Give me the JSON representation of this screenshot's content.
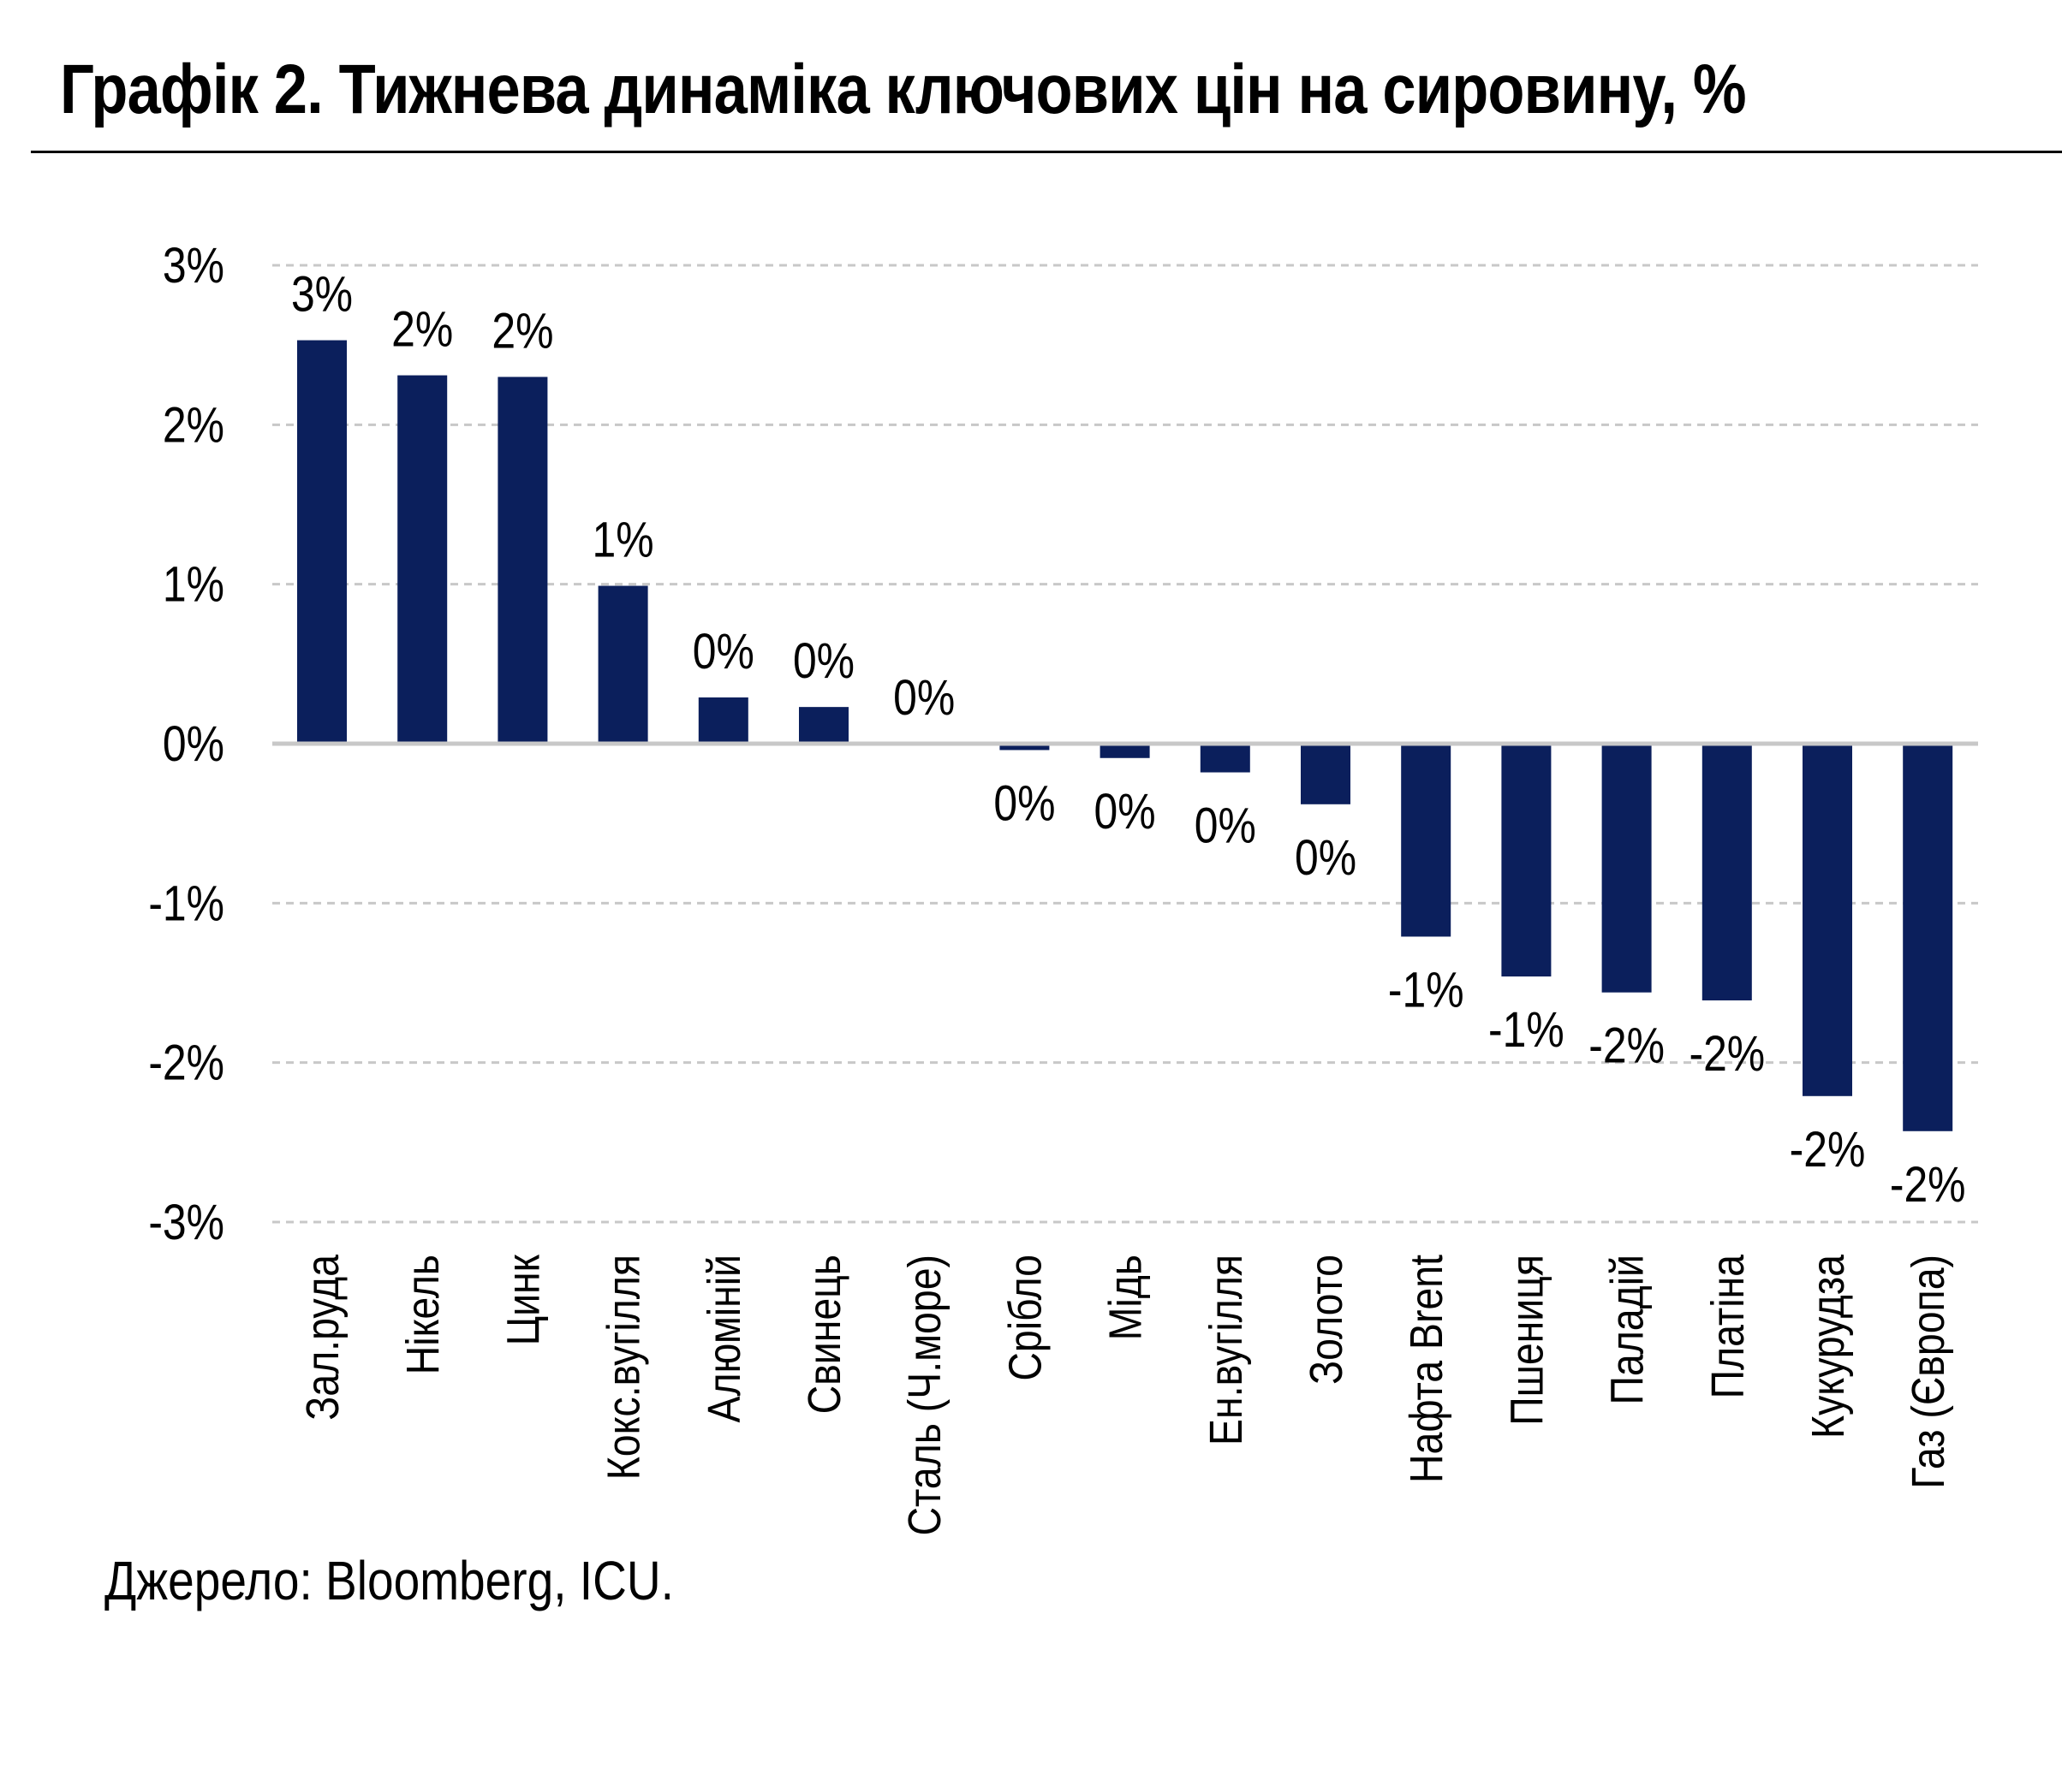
{
  "title": "Графік 2. Тижнева динаміка ключових цін на сировину, %",
  "source": "Джерело: Bloomberg, ICU.",
  "colors": {
    "bar": "#0b1f5c",
    "grid": "#c8c8c8",
    "zero_line": "#c8c8c8"
  },
  "chart_data": {
    "type": "bar",
    "categories": [
      "Зал.руда",
      "Нікель",
      "Цинк",
      "Кокс.вугілля",
      "Алюміній",
      "Свинець",
      "Сталь (Ч.море)",
      "Срібло",
      "Мідь",
      "Ен.вугілля",
      "Золото",
      "Нафта Brent",
      "Пшениця",
      "Паладій",
      "Платіна",
      "Кукурудза",
      "Газ (Європа)"
    ],
    "values": [
      2.53,
      2.31,
      2.3,
      0.99,
      0.29,
      0.23,
      0.0,
      -0.04,
      -0.09,
      -0.18,
      -0.38,
      -1.21,
      -1.46,
      -1.56,
      -1.61,
      -2.21,
      -2.43
    ],
    "data_labels": [
      "3%",
      "2%",
      "2%",
      "1%",
      "0%",
      "0%",
      "0%",
      "0%",
      "0%",
      "0%",
      "0%",
      "-1%",
      "-1%",
      "-2%",
      "-2%",
      "-2%",
      "-2%"
    ],
    "yticks": [
      3,
      2,
      1,
      0,
      -1,
      -2,
      -3
    ],
    "ytick_labels": [
      "3%",
      "2%",
      "1%",
      "0%",
      "-1%",
      "-2%",
      "-3%"
    ],
    "ylim": [
      -3,
      3
    ],
    "grid": true,
    "legend": "none"
  }
}
